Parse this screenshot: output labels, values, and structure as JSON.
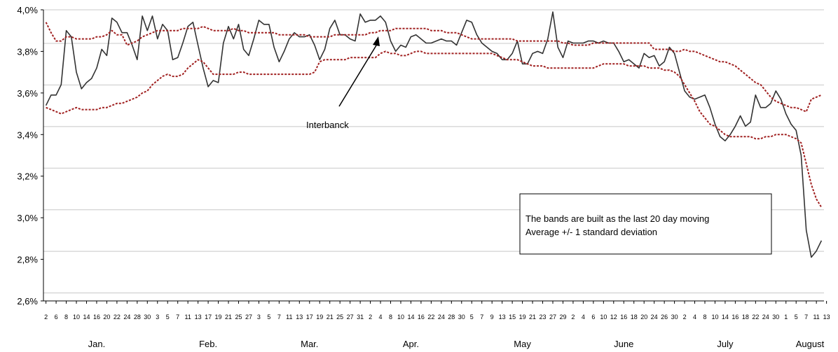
{
  "chart_data": {
    "type": "line",
    "title": "",
    "ylim": [
      2.6,
      4.0
    ],
    "yticks": [
      2.6,
      2.8,
      3.0,
      3.2,
      3.4,
      3.6,
      3.8,
      4.0
    ],
    "ytick_labels": [
      "2,6%",
      "2,8%",
      "3,0%",
      "3,2%",
      "3,4%",
      "3,6%",
      "3,8%",
      "4,0%"
    ],
    "x_tick_labels": [
      "2",
      "6",
      "8",
      "10",
      "14",
      "16",
      "20",
      "22",
      "24",
      "28",
      "30",
      "3",
      "5",
      "7",
      "11",
      "13",
      "17",
      "19",
      "21",
      "25",
      "27",
      "3",
      "5",
      "7",
      "11",
      "13",
      "17",
      "19",
      "21",
      "25",
      "27",
      "31",
      "2",
      "4",
      "8",
      "10",
      "14",
      "16",
      "22",
      "24",
      "28",
      "30",
      "5",
      "7",
      "9",
      "13",
      "15",
      "19",
      "21",
      "23",
      "27",
      "29",
      "2",
      "4",
      "6",
      "10",
      "12",
      "16",
      "18",
      "20",
      "24",
      "26",
      "30",
      "2",
      "4",
      "8",
      "10",
      "14",
      "16",
      "18",
      "22",
      "24",
      "30",
      "1",
      "5",
      "7",
      "11",
      "13"
    ],
    "months": [
      "Jan.",
      "Feb.",
      "Mar.",
      "Apr.",
      "May",
      "June",
      "July",
      "August"
    ],
    "month_tick_index": [
      5,
      16,
      26,
      36,
      47,
      57,
      67,
      76
    ],
    "series": [
      {
        "name": "Interbanck",
        "color": "#333333",
        "style": "solid",
        "values": [
          3.54,
          3.59,
          3.59,
          3.64,
          3.9,
          3.87,
          3.7,
          3.62,
          3.65,
          3.67,
          3.72,
          3.81,
          3.78,
          3.96,
          3.94,
          3.89,
          3.89,
          3.83,
          3.76,
          3.97,
          3.9,
          3.97,
          3.86,
          3.93,
          3.9,
          3.76,
          3.77,
          3.84,
          3.92,
          3.94,
          3.83,
          3.72,
          3.63,
          3.66,
          3.65,
          3.84,
          3.92,
          3.86,
          3.93,
          3.81,
          3.78,
          3.86,
          3.95,
          3.93,
          3.93,
          3.82,
          3.75,
          3.8,
          3.86,
          3.89,
          3.87,
          3.87,
          3.88,
          3.83,
          3.76,
          3.81,
          3.91,
          3.95,
          3.88,
          3.88,
          3.86,
          3.85,
          3.98,
          3.94,
          3.95,
          3.95,
          3.97,
          3.94,
          3.85,
          3.8,
          3.83,
          3.82,
          3.87,
          3.88,
          3.86,
          3.84,
          3.84,
          3.85,
          3.86,
          3.85,
          3.85,
          3.83,
          3.89,
          3.95,
          3.94,
          3.88,
          3.84,
          3.82,
          3.8,
          3.79,
          3.76,
          3.76,
          3.79,
          3.85,
          3.74,
          3.74,
          3.79,
          3.8,
          3.79,
          3.86,
          3.99,
          3.82,
          3.77,
          3.85,
          3.84,
          3.84,
          3.84,
          3.85,
          3.85,
          3.84,
          3.85,
          3.84,
          3.84,
          3.8,
          3.75,
          3.76,
          3.74,
          3.72,
          3.79,
          3.77,
          3.78,
          3.73,
          3.75,
          3.82,
          3.79,
          3.7,
          3.61,
          3.58,
          3.57,
          3.58,
          3.59,
          3.53,
          3.45,
          3.39,
          3.37,
          3.4,
          3.44,
          3.49,
          3.44,
          3.46,
          3.59,
          3.53,
          3.53,
          3.55,
          3.61,
          3.57,
          3.5,
          3.45,
          3.42,
          3.3,
          2.94,
          2.81,
          2.84,
          2.89
        ]
      },
      {
        "name": "",
        "color": "#a02020",
        "style": "dashed",
        "values": [
          3.94,
          3.89,
          3.85,
          3.85,
          3.87,
          3.87,
          3.86,
          3.86,
          3.86,
          3.86,
          3.87,
          3.87,
          3.88,
          3.9,
          3.88,
          3.88,
          3.83,
          3.84,
          3.85,
          3.87,
          3.88,
          3.89,
          3.9,
          3.9,
          3.9,
          3.9,
          3.9,
          3.91,
          3.91,
          3.91,
          3.91,
          3.92,
          3.91,
          3.9,
          3.9,
          3.9,
          3.9,
          3.91,
          3.9,
          3.9,
          3.89,
          3.89,
          3.89,
          3.89,
          3.89,
          3.89,
          3.88,
          3.88,
          3.88,
          3.88,
          3.88,
          3.88,
          3.87,
          3.87,
          3.87,
          3.87,
          3.87,
          3.88,
          3.88,
          3.88,
          3.88,
          3.88,
          3.88,
          3.88,
          3.89,
          3.89,
          3.9,
          3.9,
          3.9,
          3.91,
          3.91,
          3.91,
          3.91,
          3.91,
          3.91,
          3.91,
          3.9,
          3.9,
          3.9,
          3.89,
          3.89,
          3.89,
          3.88,
          3.87,
          3.86,
          3.86,
          3.86,
          3.86,
          3.86,
          3.86,
          3.86,
          3.86,
          3.86,
          3.85,
          3.85,
          3.85,
          3.85,
          3.85,
          3.85,
          3.85,
          3.85,
          3.85,
          3.84,
          3.84,
          3.83,
          3.83,
          3.83,
          3.83,
          3.84,
          3.84,
          3.84,
          3.84,
          3.84,
          3.84,
          3.84,
          3.84,
          3.84,
          3.84,
          3.84,
          3.84,
          3.81,
          3.81,
          3.81,
          3.81,
          3.8,
          3.8,
          3.81,
          3.8,
          3.8,
          3.79,
          3.78,
          3.77,
          3.76,
          3.75,
          3.75,
          3.74,
          3.73,
          3.71,
          3.69,
          3.67,
          3.65,
          3.64,
          3.61,
          3.58,
          3.56,
          3.55,
          3.54,
          3.53,
          3.53,
          3.52,
          3.51,
          3.57,
          3.58,
          3.59
        ]
      },
      {
        "name": "",
        "color": "#a02020",
        "style": "dashed",
        "values": [
          3.53,
          3.52,
          3.51,
          3.5,
          3.51,
          3.52,
          3.53,
          3.52,
          3.52,
          3.52,
          3.52,
          3.53,
          3.53,
          3.54,
          3.55,
          3.55,
          3.56,
          3.57,
          3.58,
          3.6,
          3.61,
          3.64,
          3.66,
          3.68,
          3.69,
          3.68,
          3.68,
          3.69,
          3.72,
          3.74,
          3.76,
          3.75,
          3.72,
          3.69,
          3.69,
          3.69,
          3.69,
          3.69,
          3.7,
          3.7,
          3.69,
          3.69,
          3.69,
          3.69,
          3.69,
          3.69,
          3.69,
          3.69,
          3.69,
          3.69,
          3.69,
          3.69,
          3.69,
          3.7,
          3.75,
          3.76,
          3.76,
          3.76,
          3.76,
          3.76,
          3.77,
          3.77,
          3.77,
          3.77,
          3.77,
          3.77,
          3.79,
          3.8,
          3.79,
          3.79,
          3.78,
          3.78,
          3.79,
          3.8,
          3.8,
          3.79,
          3.79,
          3.79,
          3.79,
          3.79,
          3.79,
          3.79,
          3.79,
          3.79,
          3.79,
          3.79,
          3.79,
          3.79,
          3.79,
          3.78,
          3.77,
          3.76,
          3.76,
          3.76,
          3.75,
          3.74,
          3.73,
          3.73,
          3.73,
          3.72,
          3.72,
          3.72,
          3.72,
          3.72,
          3.72,
          3.72,
          3.72,
          3.72,
          3.72,
          3.73,
          3.74,
          3.74,
          3.74,
          3.74,
          3.74,
          3.73,
          3.73,
          3.73,
          3.73,
          3.72,
          3.72,
          3.72,
          3.71,
          3.71,
          3.7,
          3.68,
          3.64,
          3.6,
          3.56,
          3.51,
          3.48,
          3.45,
          3.44,
          3.42,
          3.4,
          3.39,
          3.39,
          3.39,
          3.39,
          3.39,
          3.38,
          3.38,
          3.39,
          3.39,
          3.4,
          3.4,
          3.4,
          3.39,
          3.38,
          3.36,
          3.26,
          3.16,
          3.09,
          3.05
        ]
      }
    ],
    "annotation": {
      "text": "Interbanck"
    },
    "note_lines": [
      "The bands are built as the last 20 day moving",
      "Average +/- 1 standard deviation"
    ],
    "grid": true,
    "legend": "none"
  }
}
